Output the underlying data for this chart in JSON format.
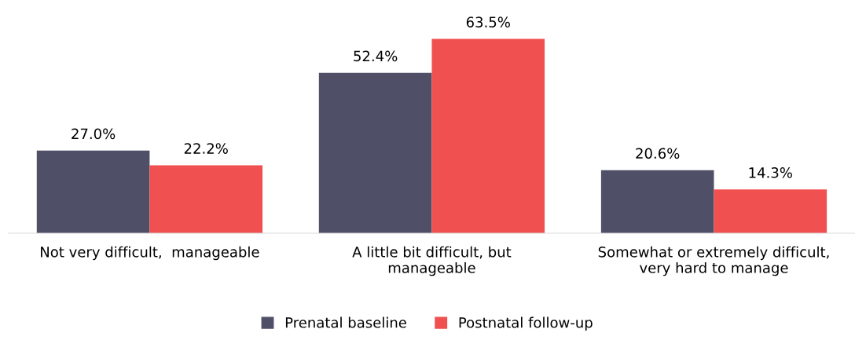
{
  "chart_data": {
    "type": "bar",
    "categories": [
      "Not very difficult,  manageable",
      "A little bit difficult, but\nmanageable",
      "Somewhat or extremely difficult,\nvery hard to manage"
    ],
    "series": [
      {
        "name": "Prenatal baseline",
        "color": "#4f4f68",
        "values": [
          27.0,
          52.4,
          20.6
        ],
        "value_labels": [
          "27.0%",
          "52.4%",
          "20.6%"
        ]
      },
      {
        "name": "Postnatal follow-up",
        "color": "#f0504f",
        "values": [
          22.2,
          63.5,
          14.3
        ],
        "value_labels": [
          "22.2%",
          "63.5%",
          "14.3%"
        ]
      }
    ],
    "grid": false,
    "legend": "bottom"
  }
}
